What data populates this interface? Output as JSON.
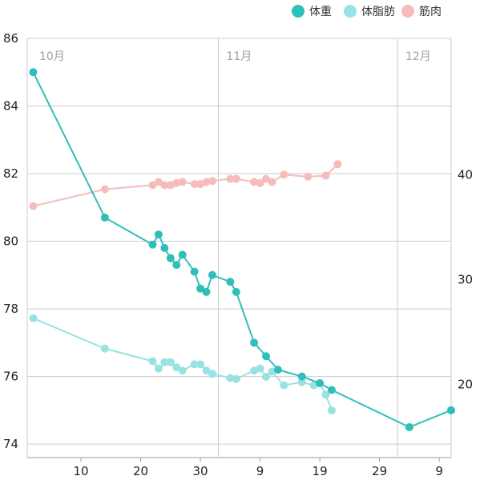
{
  "chart_data": {
    "type": "line",
    "legend_position": "top-right",
    "grid": true,
    "colors": {
      "体重": "#2ec0b8",
      "体脂肪": "#98e2e2",
      "筋肉": "#f6bcbc",
      "grid": "#cccccc"
    },
    "x_day_range": [
      0,
      71
    ],
    "x_ticks": [
      {
        "day": 9,
        "label": "10"
      },
      {
        "day": 19,
        "label": "20"
      },
      {
        "day": 29,
        "label": "30"
      },
      {
        "day": 39,
        "label": "9"
      },
      {
        "day": 49,
        "label": "19"
      },
      {
        "day": 59,
        "label": "29"
      },
      {
        "day": 69,
        "label": "9"
      }
    ],
    "month_markers": [
      {
        "day": 1,
        "label": "10月"
      },
      {
        "day": 32,
        "label": "11月"
      },
      {
        "day": 62,
        "label": "12月"
      }
    ],
    "y_left": {
      "min": 73.6,
      "max": 86.0,
      "ticks": [
        74,
        76,
        78,
        80,
        82,
        84,
        86
      ]
    },
    "y_right": {
      "min": 13.0,
      "max": 53.0,
      "ticks": [
        20,
        30,
        40
      ]
    },
    "series": [
      {
        "name": "体重",
        "axis": "left",
        "points": [
          [
            1,
            85.0
          ],
          [
            13,
            80.7
          ],
          [
            21,
            79.9
          ],
          [
            22,
            80.2
          ],
          [
            23,
            79.8
          ],
          [
            24,
            79.5
          ],
          [
            25,
            79.3
          ],
          [
            26,
            79.6
          ],
          [
            28,
            79.1
          ],
          [
            29,
            78.6
          ],
          [
            30,
            78.5
          ],
          [
            31,
            79.0
          ],
          [
            34,
            78.8
          ],
          [
            35,
            78.5
          ],
          [
            38,
            77.0
          ],
          [
            40,
            76.6
          ],
          [
            42,
            76.2
          ],
          [
            46,
            76.0
          ],
          [
            49,
            75.8
          ],
          [
            51,
            75.6
          ],
          [
            64,
            74.5
          ],
          [
            71,
            75.0
          ]
        ]
      },
      {
        "name": "体脂肪",
        "axis": "right",
        "points": [
          [
            1,
            26.3
          ],
          [
            13,
            23.4
          ],
          [
            21,
            22.2
          ],
          [
            22,
            21.5
          ],
          [
            23,
            22.1
          ],
          [
            24,
            22.1
          ],
          [
            25,
            21.6
          ],
          [
            26,
            21.3
          ],
          [
            28,
            21.9
          ],
          [
            29,
            21.9
          ],
          [
            30,
            21.3
          ],
          [
            31,
            21.0
          ],
          [
            34,
            20.6
          ],
          [
            35,
            20.5
          ],
          [
            38,
            21.3
          ],
          [
            39,
            21.5
          ],
          [
            40,
            20.7
          ],
          [
            41,
            21.2
          ],
          [
            43,
            19.9
          ],
          [
            46,
            20.2
          ],
          [
            48,
            19.9
          ],
          [
            49,
            20.1
          ],
          [
            50,
            19.0
          ],
          [
            51,
            17.5
          ]
        ]
      },
      {
        "name": "筋肉",
        "axis": "right",
        "points": [
          [
            1,
            37.0
          ],
          [
            13,
            38.6
          ],
          [
            21,
            39.0
          ],
          [
            22,
            39.3
          ],
          [
            23,
            39.0
          ],
          [
            24,
            39.0
          ],
          [
            25,
            39.2
          ],
          [
            26,
            39.3
          ],
          [
            28,
            39.1
          ],
          [
            29,
            39.1
          ],
          [
            30,
            39.3
          ],
          [
            31,
            39.4
          ],
          [
            34,
            39.6
          ],
          [
            35,
            39.6
          ],
          [
            38,
            39.3
          ],
          [
            39,
            39.2
          ],
          [
            40,
            39.6
          ],
          [
            41,
            39.3
          ],
          [
            43,
            40.0
          ],
          [
            47,
            39.8
          ],
          [
            50,
            39.9
          ],
          [
            52,
            41.0
          ]
        ]
      }
    ]
  }
}
